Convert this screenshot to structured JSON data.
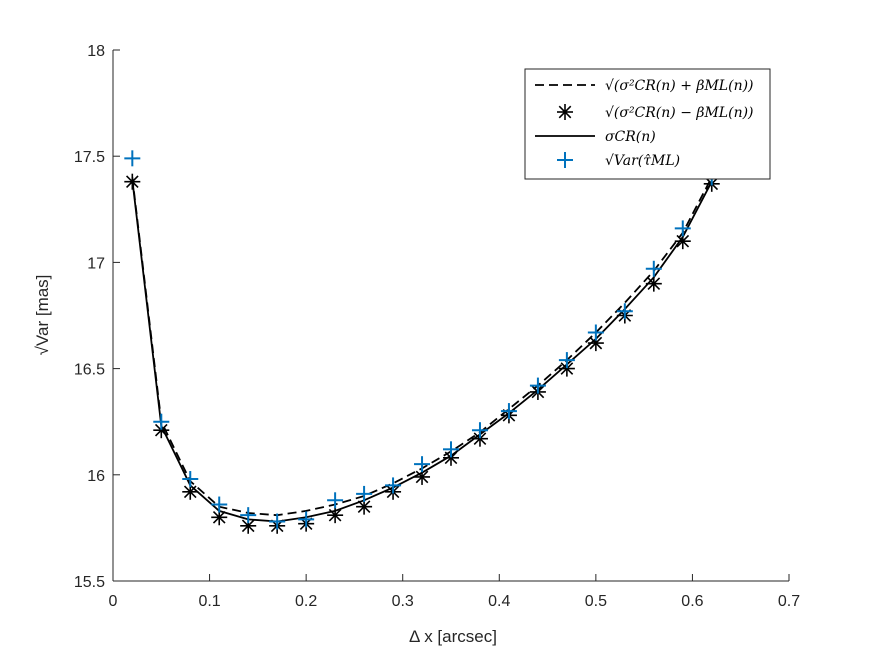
{
  "chart_data": {
    "type": "line",
    "title": "",
    "xlabel": "Δ x [arcsec]",
    "ylabel": "√Var [mas]",
    "xlim": [
      0,
      0.7
    ],
    "ylim": [
      15.5,
      18
    ],
    "xticks": [
      "0",
      "0.1",
      "0.2",
      "0.3",
      "0.4",
      "0.5",
      "0.6",
      "0.7"
    ],
    "yticks": [
      "15.5",
      "16",
      "16.5",
      "17",
      "17.5",
      "18"
    ],
    "grid": false,
    "legend_position": "top-right",
    "x": [
      0.02,
      0.05,
      0.08,
      0.11,
      0.14,
      0.17,
      0.2,
      0.23,
      0.26,
      0.29,
      0.32,
      0.35,
      0.38,
      0.41,
      0.44,
      0.47,
      0.5,
      0.53,
      0.56,
      0.59,
      0.62
    ],
    "series": [
      {
        "name": "√(σ²CR(n) + βML(n))",
        "style": "dashed-line",
        "color": "#000000",
        "values": [
          17.4,
          16.25,
          15.97,
          15.85,
          15.82,
          15.81,
          15.83,
          15.86,
          15.9,
          15.96,
          16.03,
          16.11,
          16.2,
          16.31,
          16.42,
          16.54,
          16.67,
          16.81,
          16.96,
          17.14,
          17.4
        ]
      },
      {
        "name": "√(σ²CR(n) − βML(n))",
        "style": "asterisk-marker",
        "color": "#000000",
        "values": [
          17.38,
          16.21,
          15.92,
          15.8,
          15.76,
          15.76,
          15.77,
          15.81,
          15.85,
          15.92,
          15.99,
          16.08,
          16.17,
          16.28,
          16.39,
          16.5,
          16.62,
          16.75,
          16.9,
          17.1,
          17.37
        ]
      },
      {
        "name": "σCR(n)",
        "style": "solid-line",
        "color": "#000000",
        "values": [
          17.39,
          16.23,
          15.95,
          15.83,
          15.79,
          15.78,
          15.8,
          15.83,
          15.88,
          15.94,
          16.01,
          16.09,
          16.19,
          16.29,
          16.4,
          16.52,
          16.64,
          16.78,
          16.93,
          17.12,
          17.38
        ]
      },
      {
        "name": "√Var(τ̂ML)",
        "style": "plus-marker",
        "color": "#0072BD",
        "values": [
          17.49,
          16.25,
          15.98,
          15.86,
          15.81,
          15.78,
          15.79,
          15.88,
          15.91,
          15.95,
          16.05,
          16.12,
          16.21,
          16.3,
          16.42,
          16.54,
          16.67,
          16.77,
          16.97,
          17.16,
          17.4
        ]
      }
    ]
  }
}
